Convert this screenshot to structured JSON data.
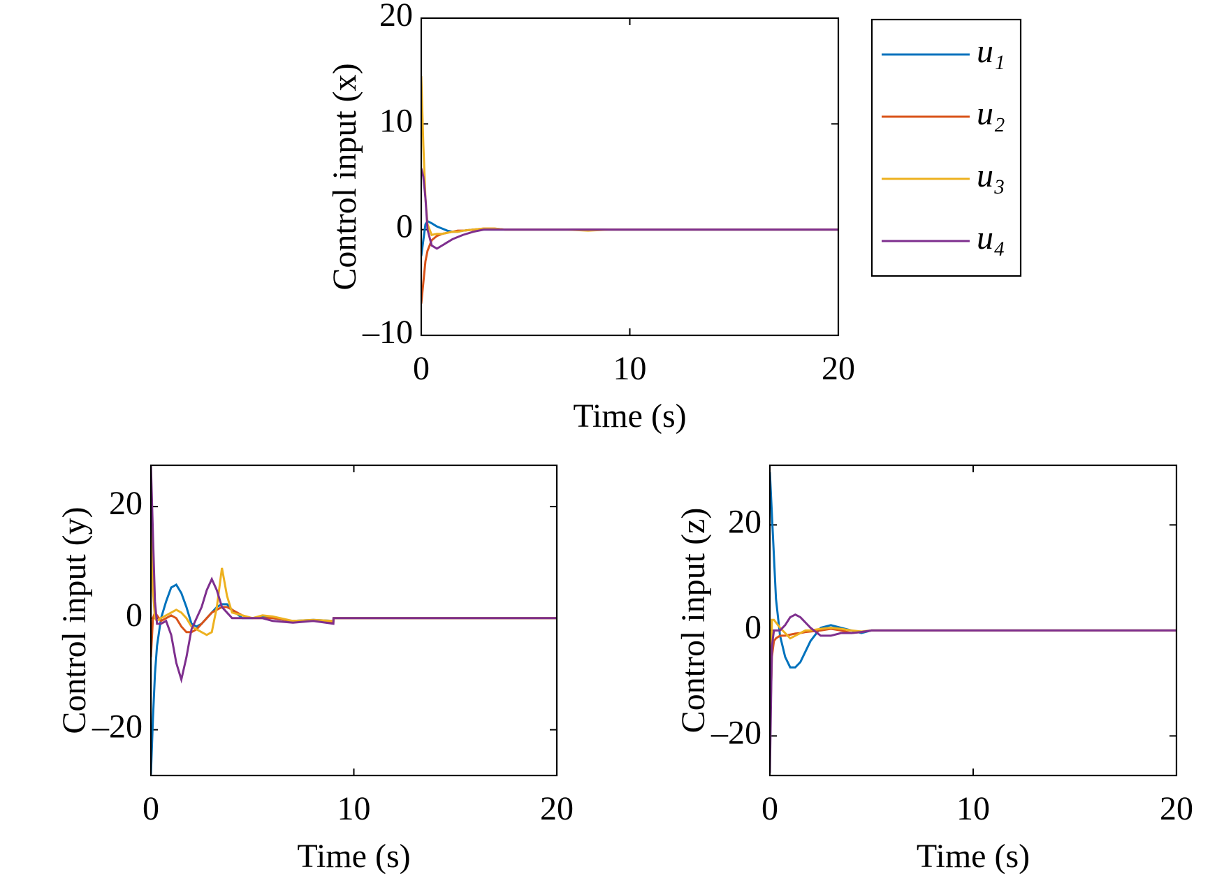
{
  "chart_data": [
    {
      "type": "line",
      "ylabel": "Control input (x)",
      "xlabel": "Time (s)",
      "xlim": [
        0,
        20
      ],
      "xticks": [
        0,
        10,
        20
      ],
      "ylim": [
        -10,
        20
      ],
      "yticks": [
        {
          "value": -10,
          "label": "–10"
        },
        0,
        10,
        20
      ],
      "legend": "outside-right",
      "x": [
        0,
        0.1,
        0.2,
        0.3,
        0.5,
        0.75,
        1,
        1.25,
        1.5,
        1.75,
        2,
        2.5,
        3,
        3.5,
        4,
        4.5,
        5,
        6,
        7,
        8,
        9,
        10,
        12,
        14,
        16,
        18,
        20
      ],
      "series": [
        {
          "name": "u₁",
          "color": "#0072bd",
          "values": [
            -2.5,
            -1,
            0.5,
            0.8,
            0.6,
            0.3,
            0.1,
            -0.1,
            -0.2,
            -0.2,
            -0.1,
            0,
            0,
            0,
            0,
            0,
            0,
            0,
            0,
            0,
            0,
            0,
            0,
            0,
            0,
            0,
            0
          ]
        },
        {
          "name": "u₂",
          "color": "#d95319",
          "values": [
            -7,
            -5,
            -3,
            -2,
            -1,
            -0.6,
            -0.4,
            -0.3,
            -0.2,
            -0.1,
            -0.1,
            0,
            0.1,
            0.1,
            0,
            0,
            0,
            0,
            0,
            0,
            0,
            0,
            0,
            0,
            0,
            0,
            0
          ]
        },
        {
          "name": "u₃",
          "color": "#edb120",
          "values": [
            14.5,
            8,
            3,
            0.5,
            -0.5,
            -0.4,
            -0.4,
            -0.3,
            -0.2,
            -0.2,
            -0.1,
            0,
            0.1,
            0.1,
            0,
            0,
            0,
            0,
            0,
            -0.1,
            0,
            0,
            0,
            0,
            0,
            0,
            0
          ]
        },
        {
          "name": "u₄",
          "color": "#7e2f8e",
          "values": [
            5.8,
            5,
            3,
            0,
            -1.5,
            -1.8,
            -1.5,
            -1.2,
            -0.9,
            -0.7,
            -0.5,
            -0.2,
            0,
            0,
            0,
            0,
            0,
            0,
            0,
            0,
            0,
            0,
            0,
            0,
            0,
            0,
            0
          ]
        }
      ]
    },
    {
      "type": "line",
      "ylabel": "Control input (y)",
      "xlabel": "Time (s)",
      "xlim": [
        0,
        20
      ],
      "xticks": [
        0,
        10,
        20
      ],
      "ylim": [
        -28.2,
        27.4
      ],
      "yticks": [
        {
          "value": -20,
          "label": "–20"
        },
        0,
        20
      ],
      "x": [
        0,
        0.1,
        0.2,
        0.3,
        0.5,
        0.75,
        1,
        1.25,
        1.5,
        1.75,
        2,
        2.25,
        2.5,
        2.75,
        3,
        3.25,
        3.5,
        3.75,
        4,
        4.5,
        5,
        5.5,
        6,
        7,
        8,
        8.99,
        9,
        10,
        14,
        20
      ],
      "series": [
        {
          "color": "#0072bd",
          "values": [
            -28,
            -18,
            -10,
            -5,
            0,
            3,
            5.5,
            6,
            4.5,
            2,
            -1,
            -1.5,
            -1,
            0,
            1,
            2,
            2.5,
            2.5,
            1.5,
            0,
            0,
            0.3,
            0,
            -0.5,
            -0.3,
            -0.5,
            0,
            0,
            0,
            0
          ]
        },
        {
          "color": "#d95319",
          "values": [
            -7,
            0,
            1,
            0.5,
            -0.5,
            0,
            0.5,
            0,
            -1.5,
            -2.5,
            -2.5,
            -2,
            -1,
            0,
            1,
            1.5,
            2,
            2,
            1.5,
            0.5,
            0,
            0,
            0,
            -0.5,
            -0.5,
            -0.8,
            0,
            0,
            0,
            0
          ]
        },
        {
          "color": "#edb120",
          "values": [
            21,
            5,
            0,
            -0.5,
            0,
            0.5,
            1,
            1.5,
            1,
            0,
            -1.5,
            -2,
            -2.5,
            -3,
            -2.5,
            2,
            9,
            4,
            1,
            0.5,
            0,
            0.5,
            0.3,
            -0.5,
            -0.3,
            -0.5,
            0,
            0,
            0,
            0
          ]
        },
        {
          "color": "#7e2f8e",
          "values": [
            27.5,
            15,
            3,
            -1,
            -1,
            -0.5,
            -3,
            -8,
            -11,
            -7,
            -2,
            0,
            2,
            5,
            7,
            5,
            2,
            1,
            0,
            0,
            0,
            0,
            -0.5,
            -0.8,
            -0.5,
            -1,
            0,
            0,
            0,
            0
          ]
        }
      ]
    },
    {
      "type": "line",
      "ylabel": "Control input (z)",
      "xlabel": "Time (s)",
      "xlim": [
        0,
        20
      ],
      "xticks": [
        0,
        10,
        20
      ],
      "ylim": [
        -27.5,
        31.3
      ],
      "yticks": [
        {
          "value": -20,
          "label": "–20"
        },
        0,
        20
      ],
      "x": [
        0,
        0.1,
        0.2,
        0.3,
        0.5,
        0.75,
        1,
        1.25,
        1.5,
        1.75,
        2,
        2.5,
        3,
        3.5,
        4,
        4.5,
        5,
        6,
        10,
        20
      ],
      "series": [
        {
          "color": "#0072bd",
          "values": [
            30,
            22,
            14,
            6,
            -1,
            -5,
            -7,
            -7,
            -6,
            -4,
            -2,
            0.5,
            1,
            0.5,
            0,
            -0.5,
            0,
            0,
            0,
            0
          ]
        },
        {
          "color": "#d95319",
          "values": [
            -20,
            -5,
            -2,
            -1.5,
            -1,
            -1,
            -0.8,
            -0.6,
            -0.5,
            -0.3,
            -0.2,
            0,
            0.3,
            0,
            -0.5,
            -0.3,
            0,
            0,
            0,
            0
          ]
        },
        {
          "color": "#edb120",
          "values": [
            -20,
            2,
            2,
            1.5,
            0.5,
            -0.5,
            -1.5,
            -1,
            -0.5,
            0,
            0,
            0.3,
            0.5,
            0.3,
            0,
            -0.2,
            0,
            0,
            0,
            0
          ]
        },
        {
          "color": "#7e2f8e",
          "values": [
            -27,
            -3,
            0,
            0,
            0,
            1,
            2.5,
            3,
            2.5,
            1.5,
            0.5,
            -1,
            -1,
            -0.5,
            -0.5,
            -0.3,
            0,
            0,
            0,
            0
          ]
        }
      ]
    }
  ]
}
